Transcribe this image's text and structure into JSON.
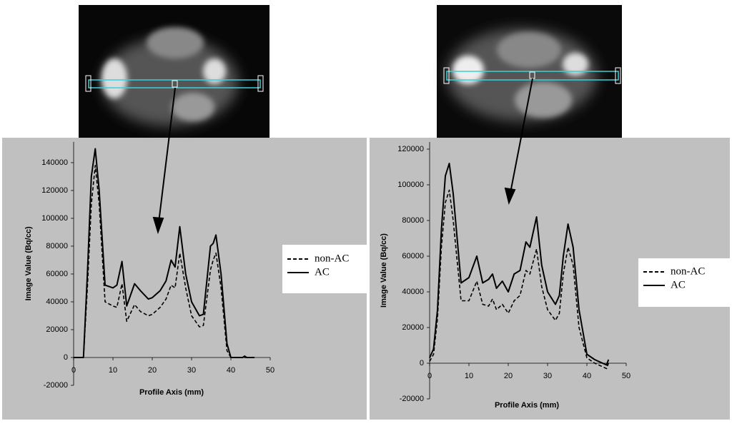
{
  "chart_data": [
    {
      "type": "line",
      "y_label": "Image Value (Bq/cc)",
      "x_label": "Profile Axis (mm)",
      "xlim": [
        0,
        50
      ],
      "xticks": [
        0,
        10,
        20,
        30,
        40,
        50
      ],
      "ylim": [
        -20000,
        155000
      ],
      "yticks": [
        -20000,
        0,
        20000,
        40000,
        60000,
        80000,
        100000,
        120000,
        140000
      ],
      "legend": "right",
      "x": [
        0,
        2.5,
        3.5,
        4.5,
        5.5,
        6.5,
        8,
        10,
        11,
        12.3,
        13.5,
        15.5,
        17,
        19,
        20,
        22,
        23.5,
        24.8,
        25.8,
        27,
        28.5,
        30,
        32,
        33,
        34.8,
        35.5,
        36.2,
        37.5,
        39,
        40,
        43,
        43.5,
        44,
        46
      ],
      "series": [
        {
          "name": "non-AC",
          "color": "#000000",
          "dash": true,
          "values": [
            0,
            0,
            50000,
            110000,
            138000,
            110000,
            40000,
            37000,
            36000,
            53000,
            26000,
            38000,
            33000,
            30000,
            31000,
            36000,
            42000,
            52000,
            50000,
            75000,
            50000,
            30000,
            22000,
            23000,
            63000,
            70000,
            75000,
            50000,
            5000,
            0,
            0,
            0,
            0,
            0
          ]
        },
        {
          "name": "AC",
          "color": "#000000",
          "dash": false,
          "values": [
            0,
            0,
            60000,
            130000,
            150000,
            120000,
            52000,
            50000,
            52000,
            69000,
            37000,
            53000,
            48000,
            42000,
            43000,
            48000,
            55000,
            70000,
            65000,
            94000,
            60000,
            40000,
            30000,
            31000,
            80000,
            82000,
            88000,
            60000,
            10000,
            0,
            0,
            1000,
            0,
            0
          ]
        }
      ]
    },
    {
      "type": "line",
      "y_label": "Image Value (Bq/cc)",
      "x_label": "Profile Axis (mm)",
      "xlim": [
        0,
        50
      ],
      "xticks": [
        0,
        10,
        20,
        30,
        40,
        50
      ],
      "ylim": [
        -20000,
        124000
      ],
      "yticks": [
        -20000,
        0,
        20000,
        40000,
        60000,
        80000,
        100000,
        120000
      ],
      "legend": "right",
      "x": [
        0,
        1,
        2,
        3,
        4,
        5,
        6,
        8,
        10,
        12,
        13.5,
        15,
        16,
        17,
        18.5,
        20,
        21.5,
        23,
        24.5,
        25.5,
        27.2,
        28.5,
        30,
        32,
        33,
        34,
        35.2,
        36.5,
        38,
        40,
        42,
        44,
        45,
        45.5
      ],
      "series": [
        {
          "name": "non-AC",
          "color": "#000000",
          "dash": true,
          "values": [
            1000,
            5000,
            25000,
            65000,
            90000,
            97000,
            80000,
            35000,
            35000,
            46000,
            33000,
            32000,
            36000,
            30000,
            33000,
            28000,
            35000,
            38000,
            52000,
            50000,
            64000,
            43000,
            30000,
            24000,
            28000,
            50000,
            65000,
            55000,
            20000,
            3000,
            0,
            -2000,
            -3000,
            0
          ]
        },
        {
          "name": "AC",
          "color": "#000000",
          "dash": false,
          "values": [
            3000,
            8000,
            30000,
            75000,
            105000,
            112000,
            95000,
            45000,
            48000,
            60000,
            45000,
            47000,
            50000,
            42000,
            46000,
            40000,
            50000,
            52000,
            68000,
            65000,
            82000,
            55000,
            40000,
            33000,
            38000,
            60000,
            78000,
            65000,
            30000,
            5000,
            2000,
            0,
            -1000,
            2000
          ]
        }
      ]
    }
  ]
}
